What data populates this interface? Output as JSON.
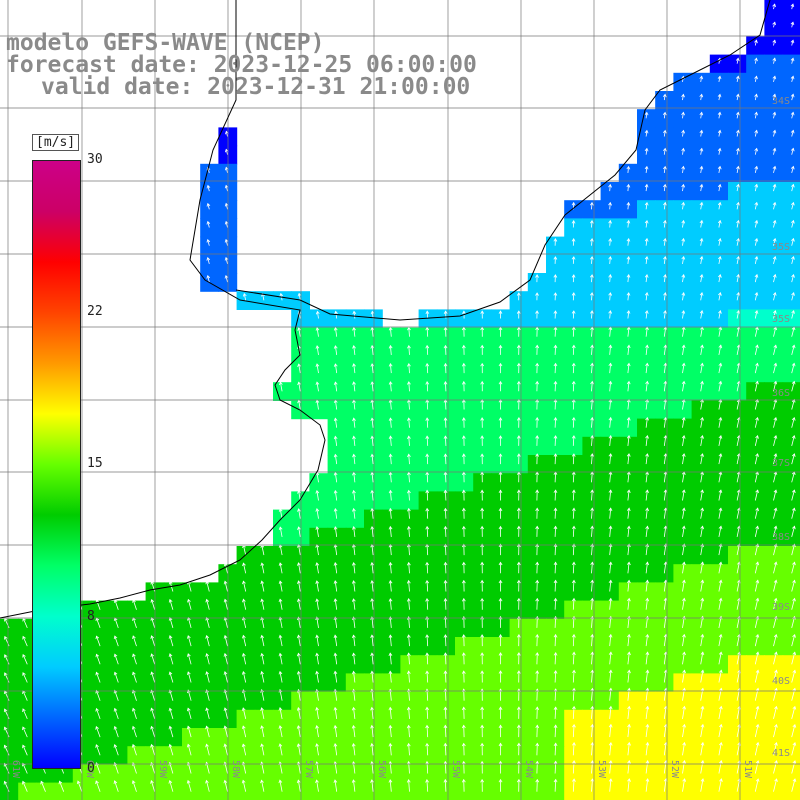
{
  "title": {
    "line1": "modelo GEFS-WAVE (NCEP)",
    "line2": "forecast date: 2023-12-25 06:00:00",
    "line3": "valid date: 2023-12-31 21:00:00"
  },
  "colorbar": {
    "unit": "[m/s]",
    "ticks": [
      "30",
      "22",
      "15",
      "8",
      "0"
    ],
    "min": 0,
    "max": 30,
    "colors": [
      "#0000ff",
      "#0066ff",
      "#00ccff",
      "#00ffcc",
      "#00ff66",
      "#00cc00",
      "#66ff00",
      "#ffff00",
      "#ff9900",
      "#ff4400",
      "#ff0000",
      "#cc0066",
      "#cc0088"
    ]
  },
  "lat_labels": [
    "34S",
    "35S",
    "35S",
    "36S",
    "37S",
    "38S",
    "39S",
    "40S",
    "41S"
  ],
  "lon_labels": [
    "61W",
    "60W",
    "59W",
    "58W",
    "57W",
    "56W",
    "55W",
    "54W",
    "53W",
    "52W",
    "51W"
  ],
  "colors": {
    "land": "#ffffff",
    "coast": "#000000",
    "grid": "#777777",
    "arrow": "#ffffff",
    "label": "#8a8a8a"
  }
}
